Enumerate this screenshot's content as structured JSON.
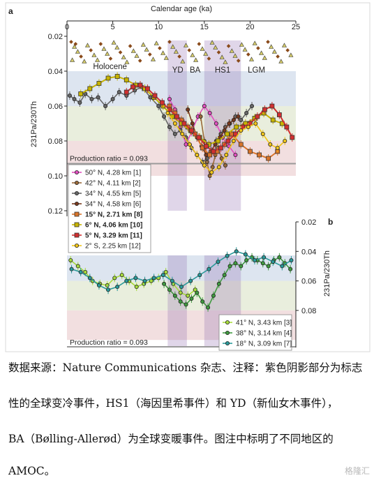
{
  "chart_data": [
    {
      "type": "scatter",
      "panel_label": "a",
      "xlabel": "Calendar age (ka)",
      "ylabel": "231Pa/230Th",
      "xlim": [
        0,
        25
      ],
      "ylim": [
        0.02,
        0.12
      ],
      "y_reversed": true,
      "x_ticks": [
        "0",
        "5",
        "10",
        "15",
        "20",
        "25"
      ],
      "y_ticks": [
        "0.02",
        "0.04",
        "0.06",
        "0.08",
        "0.10",
        "0.12"
      ],
      "event_labels": [
        "Holocene",
        "YD",
        "BA",
        "HS1",
        "LGM"
      ],
      "shaded_events": [
        {
          "label": "YD",
          "from": 11.0,
          "to": 13.1
        },
        {
          "label": "HS1",
          "from": 15.0,
          "to": 19.0
        }
      ],
      "production_ratio": {
        "label": "Production ratio = 0.093",
        "value": 0.093
      },
      "bands": [
        {
          "from": 0.04,
          "to": 0.06,
          "color": "#dde5f0"
        },
        {
          "from": 0.06,
          "to": 0.08,
          "color": "#e9eedd"
        },
        {
          "from": 0.08,
          "to": 0.1,
          "color": "#f2dfe0"
        }
      ],
      "series": [
        {
          "name": "50° N, 4.28 km [1]",
          "color": "#e24fc0",
          "marker": "circle",
          "bold": false,
          "x": [
            11.2,
            11.8,
            12.4,
            13.0,
            13.6,
            14.3,
            15.0,
            15.6,
            16.3,
            17.0,
            17.7,
            18.4
          ],
          "y": [
            0.056,
            0.062,
            0.072,
            0.082,
            0.075,
            0.066,
            0.06,
            0.064,
            0.07,
            0.078,
            0.083,
            0.088
          ]
        },
        {
          "name": "42° N, 4.11 km [2]",
          "color": "#9a6a3a",
          "marker": "circle",
          "bold": false,
          "x": [
            14.6,
            15.0,
            15.3,
            15.6,
            15.9,
            16.2,
            16.5,
            16.9,
            17.3
          ],
          "y": [
            0.066,
            0.08,
            0.092,
            0.1,
            0.095,
            0.088,
            0.084,
            0.09,
            0.094
          ]
        },
        {
          "name": "34° N, 4.55 km [5]",
          "color": "#666666",
          "marker": "circle",
          "bold": false,
          "x": [
            0.3,
            0.8,
            1.4,
            2.0,
            2.7,
            3.4,
            4.2,
            5.0,
            5.7,
            6.5,
            7.4,
            8.2,
            9.1,
            10.0,
            10.6,
            11.2,
            11.8,
            12.4,
            13.0,
            13.6,
            14.2,
            14.8,
            15.3,
            15.8,
            16.3,
            16.8,
            17.3,
            17.8,
            18.4,
            19.0,
            19.6,
            20.2
          ],
          "y": [
            0.054,
            0.056,
            0.058,
            0.053,
            0.056,
            0.055,
            0.06,
            0.056,
            0.052,
            0.054,
            0.051,
            0.049,
            0.055,
            0.06,
            0.066,
            0.072,
            0.076,
            0.074,
            0.078,
            0.084,
            0.088,
            0.092,
            0.09,
            0.086,
            0.08,
            0.076,
            0.072,
            0.07,
            0.066,
            0.068,
            0.064,
            0.06
          ]
        },
        {
          "name": "34° N, 4.58 km [6]",
          "color": "#7a3a1e",
          "marker": "circle",
          "bold": false,
          "x": [
            13.2,
            13.7,
            14.2,
            14.7,
            15.2,
            15.7,
            16.2,
            16.7,
            17.2,
            17.7,
            18.2,
            18.7
          ],
          "y": [
            0.062,
            0.07,
            0.078,
            0.083,
            0.088,
            0.086,
            0.082,
            0.078,
            0.074,
            0.07,
            0.068,
            0.066
          ]
        },
        {
          "name": "15° N, 2.71 km [8]",
          "color": "#d9742a",
          "marker": "square",
          "bold": true,
          "x": [
            11.2,
            11.8,
            12.5,
            13.2,
            14.0,
            14.8,
            15.6,
            16.4,
            17.2,
            18.0,
            19.0,
            20.0,
            21.0,
            22.0,
            23.0
          ],
          "y": [
            0.06,
            0.064,
            0.068,
            0.072,
            0.076,
            0.084,
            0.088,
            0.086,
            0.082,
            0.076,
            0.082,
            0.086,
            0.088,
            0.09,
            0.086
          ]
        },
        {
          "name": "6° N, 4.06 km [10]",
          "color": "#c8b400",
          "marker": "square",
          "bold": true,
          "x": [
            1.5,
            2.5,
            3.5,
            4.5,
            5.5,
            6.5,
            7.5,
            8.5,
            9.5,
            10.5,
            11.5,
            12.5,
            13.5,
            14.5,
            15.5,
            16.5,
            17.5,
            18.5,
            19.5,
            20.5,
            21.5,
            22.5,
            23.5
          ],
          "y": [
            0.053,
            0.05,
            0.047,
            0.044,
            0.043,
            0.045,
            0.048,
            0.05,
            0.055,
            0.06,
            0.066,
            0.07,
            0.074,
            0.078,
            0.082,
            0.08,
            0.076,
            0.072,
            0.07,
            0.067,
            0.064,
            0.068,
            0.07
          ]
        },
        {
          "name": "5° N, 3.29 km [11]",
          "color": "#d23030",
          "marker": "square",
          "bold": true,
          "x": [
            6.5,
            7.2,
            8.0,
            8.8,
            9.6,
            10.4,
            11.2,
            12.0,
            12.8,
            13.6,
            14.4,
            15.2,
            16.0,
            16.8,
            17.6,
            18.4,
            19.2,
            20.0,
            20.8,
            21.6,
            22.4,
            23.2,
            24.0,
            24.6
          ],
          "y": [
            0.052,
            0.049,
            0.048,
            0.05,
            0.054,
            0.058,
            0.062,
            0.066,
            0.07,
            0.074,
            0.078,
            0.083,
            0.086,
            0.084,
            0.08,
            0.076,
            0.072,
            0.07,
            0.066,
            0.062,
            0.06,
            0.065,
            0.072,
            0.078
          ]
        },
        {
          "name": "2° S, 2.25 km [12]",
          "color": "#f2c61a",
          "marker": "circle",
          "bold": false,
          "x": [
            11.0,
            11.8,
            12.6,
            13.4,
            14.2,
            15.0,
            15.8,
            16.6,
            17.4,
            18.2,
            19.0,
            19.8,
            20.6,
            21.4,
            22.2,
            23.0,
            23.8
          ],
          "y": [
            0.064,
            0.07,
            0.076,
            0.082,
            0.088,
            0.094,
            0.098,
            0.095,
            0.088,
            0.08,
            0.074,
            0.072,
            0.07,
            0.076,
            0.082,
            0.084,
            0.08
          ]
        }
      ],
      "legend_position": "lower-left"
    },
    {
      "type": "scatter",
      "panel_label": "b",
      "ylabel": "231Pa/230Th",
      "xlim": [
        0,
        25
      ],
      "ylim": [
        0.02,
        0.09
      ],
      "y_reversed": true,
      "y_ticks": [
        "0.02",
        "0.04",
        "0.06",
        "0.08"
      ],
      "production_ratio": {
        "label": "Production ratio = 0.093",
        "value": 0.093
      },
      "series": [
        {
          "name": "41° N, 3.43 km [3]",
          "color": "#a8dc3c",
          "marker": "circle",
          "x": [
            0.4,
            1.2,
            2.0,
            2.8,
            3.6,
            4.4,
            5.2,
            6.0,
            6.8,
            7.6,
            8.4,
            9.2,
            10.0,
            10.8,
            11.6,
            12.4,
            13.2,
            14.0
          ],
          "y": [
            0.046,
            0.05,
            0.054,
            0.06,
            0.062,
            0.063,
            0.058,
            0.056,
            0.06,
            0.064,
            0.062,
            0.06,
            0.058,
            0.054,
            0.062,
            0.068,
            0.07,
            0.066
          ]
        },
        {
          "name": "38° N, 3.14 km [4]",
          "color": "#3f9a3f",
          "marker": "circle",
          "x": [
            10.6,
            11.2,
            11.8,
            12.4,
            13.0,
            13.6,
            14.2,
            14.8,
            15.4,
            16.0,
            16.6,
            17.2,
            17.8,
            18.4,
            19.0,
            19.6,
            20.2,
            20.8,
            21.4,
            22.0,
            22.6,
            23.2,
            23.8,
            24.4
          ],
          "y": [
            0.062,
            0.066,
            0.07,
            0.074,
            0.076,
            0.072,
            0.068,
            0.074,
            0.078,
            0.07,
            0.062,
            0.056,
            0.05,
            0.048,
            0.05,
            0.046,
            0.044,
            0.046,
            0.048,
            0.05,
            0.046,
            0.044,
            0.048,
            0.052
          ]
        },
        {
          "name": "18° N, 3.09 km [7]",
          "color": "#2a9a9a",
          "marker": "circle",
          "x": [
            0.5,
            1.5,
            2.5,
            3.5,
            4.5,
            5.5,
            6.5,
            7.5,
            8.5,
            9.5,
            10.5,
            11.5,
            12.5,
            13.5,
            14.5,
            15.5,
            16.5,
            17.5,
            18.5,
            19.5,
            20.5,
            21.5,
            22.5,
            23.5,
            24.5
          ],
          "y": [
            0.052,
            0.054,
            0.058,
            0.063,
            0.066,
            0.064,
            0.06,
            0.058,
            0.06,
            0.058,
            0.056,
            0.06,
            0.064,
            0.06,
            0.056,
            0.052,
            0.047,
            0.043,
            0.04,
            0.042,
            0.046,
            0.044,
            0.047,
            0.05,
            0.046
          ]
        }
      ],
      "legend_position": "lower-right"
    }
  ],
  "caption": {
    "lines": [
      "数据来源：Nature Communications 杂志、注释：紫色阴影部分为标志",
      "性的全球变冷事件，HS1（海因里希事件）和 YD（新仙女木事件），",
      "BA（Bølling-Allerød）为全球变暖事件。图注中标明了不同地区的",
      "AMOC。"
    ]
  },
  "watermark": "格隆汇"
}
